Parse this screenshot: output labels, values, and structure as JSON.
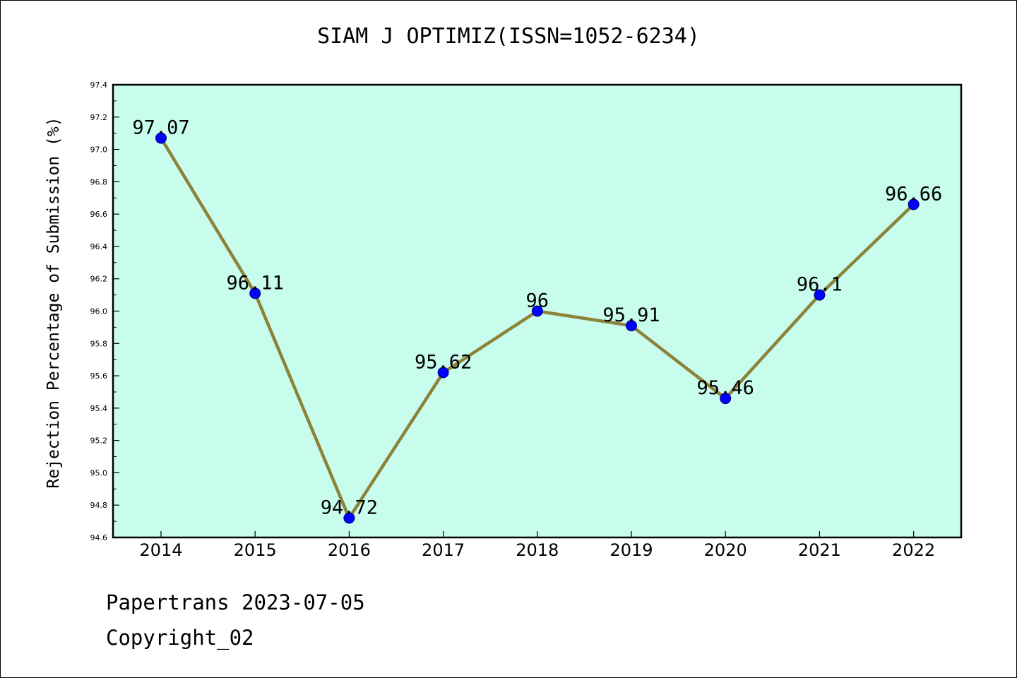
{
  "chart_data": {
    "type": "line",
    "title": "SIAM J OPTIMIZ(ISSN=1052-6234)",
    "xlabel": "",
    "ylabel": "Rejection Percentage of Submission (%)",
    "categories": [
      "2014",
      "2015",
      "2016",
      "2017",
      "2018",
      "2019",
      "2020",
      "2021",
      "2022"
    ],
    "values": [
      97.07,
      96.11,
      94.72,
      95.62,
      96,
      95.91,
      95.46,
      96.1,
      96.66
    ],
    "data_labels": [
      "97.07",
      "96.11",
      "94.72",
      "95.62",
      "96",
      "95.91",
      "95.46",
      "96.1",
      "96.66"
    ],
    "ylim": [
      94.6,
      97.4
    ],
    "yticks": [
      "94.6",
      "94.8",
      "95.0",
      "95.2",
      "95.4",
      "95.6",
      "95.8",
      "96.0",
      "96.2",
      "96.4",
      "96.6",
      "96.8",
      "97.0",
      "97.2",
      "97.4"
    ],
    "grid": false,
    "colors": {
      "plot_background": "#c8fced",
      "line": "#8c8238",
      "marker": "#0000ff"
    }
  },
  "footer": {
    "source": "Papertrans 2023-07-05",
    "copyright": "Copyright_02"
  }
}
